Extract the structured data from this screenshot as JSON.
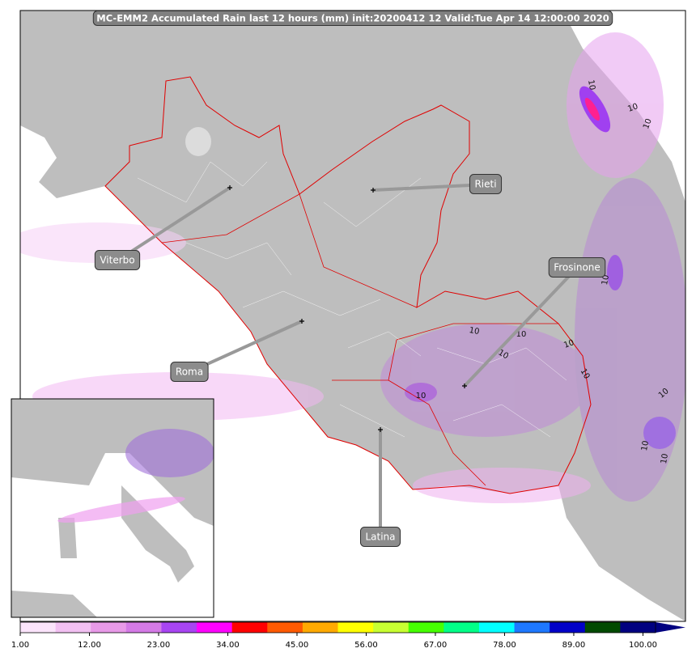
{
  "title": "MC-EMM2 Accumulated Rain last 12 hours (mm) init:20200412 12  Valid:Tue Apr 14 12:00:00 2020",
  "cities": [
    "Viterbo",
    "Rieti",
    "Frosinone",
    "Roma",
    "Latina"
  ],
  "contour_labels": [
    "10",
    "10",
    "10",
    "10",
    "10",
    "10",
    "10",
    "10",
    "10",
    "10",
    "10",
    "10",
    "10"
  ],
  "colorbar": {
    "lim": [
      1,
      102
    ],
    "ticks": [
      {
        "value": 1,
        "label": "1.00"
      },
      {
        "value": 12,
        "label": "12.00"
      },
      {
        "value": 23,
        "label": "23.00"
      },
      {
        "value": 34,
        "label": "34.00"
      },
      {
        "value": 45,
        "label": "45.00"
      },
      {
        "value": 56,
        "label": "56.00"
      },
      {
        "value": 67,
        "label": "67.00"
      },
      {
        "value": 78,
        "label": "78.00"
      },
      {
        "value": 89,
        "label": "89.00"
      },
      {
        "value": 100,
        "label": "100.00"
      }
    ],
    "colors": [
      "#fbe4fb",
      "#f2c0f2",
      "#e89ae8",
      "#d47ae6",
      "#a845f2",
      "#ff00ff",
      "#ff0000",
      "#ff5a00",
      "#ffaa00",
      "#ffff00",
      "#c8ff32",
      "#46ff00",
      "#00ff88",
      "#00ffff",
      "#1e78ff",
      "#0000c8",
      "#004a00",
      "#000080"
    ]
  }
}
